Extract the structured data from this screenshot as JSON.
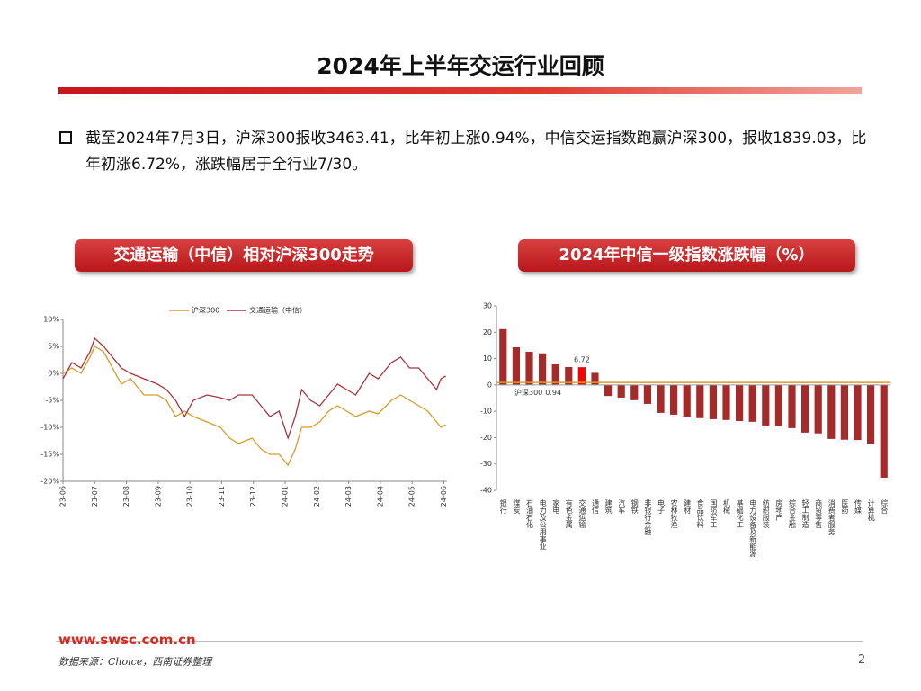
{
  "header": {
    "title": "2024年上半年交运行业回顾"
  },
  "bullet": "截至2024年7月3日，沪深300报收3463.41，比年初上涨0.94%，中信交运指数跑赢沪深300，报收1839.03，比年初涨6.72%，涨跌幅居于全行业7/30。",
  "footer": {
    "website": "www.swsc.com.cn",
    "source": "数据来源：Choice，西南证券整理",
    "page": 2
  },
  "chart_data": [
    {
      "type": "line",
      "title": "交通运输（中信）相对沪深300走势",
      "x": [
        0,
        0.28,
        0.57,
        0.85,
        1.0,
        1.28,
        1.56,
        1.84,
        2.13,
        2.55,
        2.98,
        3.26,
        3.55,
        3.83,
        4.11,
        4.54,
        4.96,
        5.25,
        5.53,
        5.96,
        6.24,
        6.52,
        6.81,
        7.09,
        7.32,
        7.52,
        7.8,
        8.09,
        8.37,
        8.65,
        8.94,
        9.22,
        9.65,
        9.93,
        10.35,
        10.64,
        10.92,
        11.21,
        11.49,
        11.77,
        11.91,
        12.06
      ],
      "series": [
        {
          "name": "沪深300",
          "color": "#d99b2b",
          "values": [
            0,
            1,
            0,
            3,
            5,
            4,
            1,
            -2,
            -1,
            -4,
            -4,
            -5,
            -8,
            -7,
            -8,
            -9,
            -10,
            -12,
            -13,
            -12,
            -14,
            -15,
            -15,
            -17,
            -14,
            -10,
            -10,
            -9,
            -7,
            -6,
            -7,
            -8,
            -7,
            -7.5,
            -5,
            -4,
            -5,
            -6,
            -7,
            -9,
            -10,
            -9.5
          ]
        },
        {
          "name": "交通运输（中信）",
          "color": "#a8343a",
          "values": [
            -1,
            2,
            1,
            4,
            6.5,
            5,
            3,
            1,
            0,
            -1,
            -2,
            -3,
            -5,
            -8,
            -5,
            -4,
            -4.5,
            -5,
            -4,
            -4,
            -6,
            -8,
            -7,
            -12,
            -8,
            -3,
            -5,
            -6,
            -4,
            -2,
            -3,
            -4,
            0,
            -1,
            2,
            3,
            1,
            1,
            -1,
            -3,
            -1,
            -0.5
          ]
        }
      ],
      "xlim": [
        0,
        12.1
      ],
      "xticks": [
        {
          "value": 0,
          "label": "23-06"
        },
        {
          "value": 1,
          "label": "23-07"
        },
        {
          "value": 2,
          "label": "23-08"
        },
        {
          "value": 3,
          "label": "23-09"
        },
        {
          "value": 4,
          "label": "23-10"
        },
        {
          "value": 5,
          "label": "23-11"
        },
        {
          "value": 6,
          "label": "23-12"
        },
        {
          "value": 7,
          "label": "24-01"
        },
        {
          "value": 8,
          "label": "24-02"
        },
        {
          "value": 9,
          "label": "24-03"
        },
        {
          "value": 10,
          "label": "24-04"
        },
        {
          "value": 11,
          "label": "24-05"
        },
        {
          "value": 12,
          "label": "24-06"
        }
      ],
      "ylim": [
        -20,
        10
      ],
      "yticks": [
        {
          "value": -20,
          "label": "-20%"
        },
        {
          "value": -15,
          "label": "-15%"
        },
        {
          "value": -10,
          "label": "-10%"
        },
        {
          "value": -5,
          "label": "-5%"
        },
        {
          "value": 0,
          "label": "0%"
        },
        {
          "value": 5,
          "label": "5%"
        },
        {
          "value": 10,
          "label": "10%"
        }
      ],
      "legend": "top"
    },
    {
      "type": "bar",
      "title": "2024年中信一级指数涨跌幅（%）",
      "categories": [
        "银行",
        "煤炭",
        "石油石化",
        "电力及公用事业",
        "家电",
        "有色金属",
        "交通运输",
        "通信",
        "建筑",
        "汽车",
        "钢铁",
        "非银行金融",
        "电子",
        "农林牧渔",
        "建材",
        "食品饮料",
        "国防军工",
        "机械",
        "基础化工",
        "电力设备及新能源",
        "纺织服装",
        "房地产",
        "综合金融",
        "轻工制造",
        "商贸零售",
        "消费者服务",
        "医药",
        "传媒",
        "计算机",
        "综合"
      ],
      "values": [
        21.2,
        14.3,
        12.6,
        12,
        7.8,
        6.8,
        6.72,
        4.6,
        -4.2,
        -4.8,
        -5.8,
        -7.2,
        -10.6,
        -11.3,
        -12,
        -12.6,
        -13,
        -13.3,
        -13.7,
        -14,
        -15.4,
        -15.7,
        -16.4,
        -18.1,
        -18.4,
        -20.5,
        -20.8,
        -20.9,
        -22.5,
        -35.2
      ],
      "value_labels": [
        null,
        null,
        null,
        null,
        null,
        null,
        "6.72",
        null,
        null,
        null,
        null,
        null,
        null,
        null,
        null,
        null,
        null,
        null,
        null,
        null,
        null,
        null,
        null,
        null,
        null,
        null,
        null,
        null,
        null,
        null
      ],
      "colors": [
        "#a52a2a",
        "#a52a2a",
        "#a52a2a",
        "#a52a2a",
        "#a52a2a",
        "#a52a2a",
        "#ff0000",
        "#a52a2a",
        "#a52a2a",
        "#a52a2a",
        "#a52a2a",
        "#a52a2a",
        "#a52a2a",
        "#a52a2a",
        "#a52a2a",
        "#a52a2a",
        "#a52a2a",
        "#a52a2a",
        "#a52a2a",
        "#a52a2a",
        "#a52a2a",
        "#a52a2a",
        "#a52a2a",
        "#a52a2a",
        "#a52a2a",
        "#a52a2a",
        "#a52a2a",
        "#a52a2a",
        "#a52a2a",
        "#a52a2a"
      ],
      "reference_line": {
        "name": "沪深300",
        "value": 0.94,
        "color": "#d99b2b"
      },
      "ylim": [
        -40,
        30
      ],
      "yticks": [
        -40,
        -30,
        -20,
        -10,
        0,
        10,
        20,
        30
      ]
    }
  ]
}
